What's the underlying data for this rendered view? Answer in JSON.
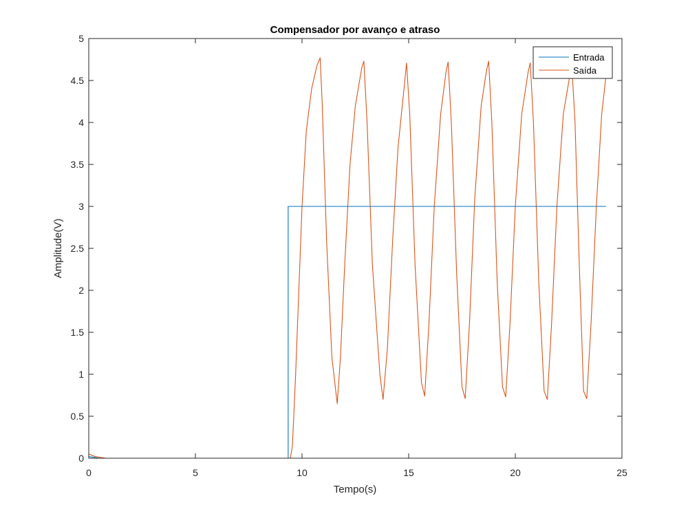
{
  "chart_data": {
    "type": "line",
    "title": "Compensador por avanço e atraso",
    "xlabel": "Tempo(s)",
    "ylabel": "Amplitude(V)",
    "xlim": [
      0,
      25
    ],
    "ylim": [
      0,
      5
    ],
    "xticks": [
      0,
      5,
      10,
      15,
      20,
      25
    ],
    "xtick_labels": [
      "0",
      "5",
      "10",
      "15",
      "20",
      "25"
    ],
    "yticks": [
      0,
      0.5,
      1,
      1.5,
      2,
      2.5,
      3,
      3.5,
      4,
      4.5,
      5
    ],
    "ytick_labels": [
      "0",
      "0.5",
      "1",
      "1.5",
      "2",
      "2.5",
      "3",
      "3.5",
      "4",
      "4.5",
      "5"
    ],
    "grid": false,
    "legend_position": "top-right",
    "series": [
      {
        "name": "Entrada",
        "color": "#0072BD",
        "x": [
          0,
          0.5,
          9.35,
          9.35,
          24.25
        ],
        "y": [
          0.02,
          0,
          0,
          3,
          3
        ]
      },
      {
        "name": "Saída",
        "color": "#D95319",
        "x": [
          0,
          0.3,
          0.8,
          9.45,
          9.55,
          9.7,
          9.85,
          10.0,
          10.2,
          10.45,
          10.7,
          10.85,
          10.95,
          11.15,
          11.4,
          11.65,
          11.8,
          12.0,
          12.25,
          12.5,
          12.8,
          12.9,
          13.05,
          13.3,
          13.65,
          13.8,
          14.0,
          14.25,
          14.5,
          14.8,
          14.9,
          15.05,
          15.3,
          15.6,
          15.75,
          15.95,
          16.2,
          16.5,
          16.75,
          16.85,
          17.0,
          17.25,
          17.5,
          17.65,
          17.85,
          18.1,
          18.4,
          18.65,
          18.75,
          18.9,
          19.15,
          19.4,
          19.55,
          19.75,
          20.0,
          20.3,
          20.6,
          20.7,
          20.85,
          21.1,
          21.35,
          21.5,
          21.7,
          21.95,
          22.25,
          22.55,
          22.65,
          22.8,
          23.0,
          23.2,
          23.35,
          23.55,
          23.8,
          24.05,
          24.25
        ],
        "y": [
          0.05,
          0.02,
          0,
          0,
          0.15,
          1.0,
          2.0,
          3.0,
          3.9,
          4.4,
          4.68,
          4.77,
          4.2,
          2.6,
          1.2,
          0.65,
          1.2,
          2.3,
          3.5,
          4.2,
          4.65,
          4.73,
          4.0,
          2.3,
          1.0,
          0.7,
          1.3,
          2.6,
          3.7,
          4.45,
          4.71,
          4.1,
          2.3,
          0.9,
          0.74,
          1.6,
          3.0,
          4.1,
          4.6,
          4.72,
          4.0,
          2.2,
          0.85,
          0.71,
          1.6,
          3.1,
          4.2,
          4.62,
          4.73,
          4.0,
          2.1,
          0.85,
          0.73,
          1.6,
          3.0,
          4.1,
          4.6,
          4.71,
          4.0,
          2.1,
          0.8,
          0.7,
          1.6,
          3.0,
          4.1,
          4.55,
          4.68,
          4.0,
          2.3,
          0.8,
          0.71,
          1.6,
          3.0,
          4.1,
          4.55
        ]
      }
    ]
  }
}
